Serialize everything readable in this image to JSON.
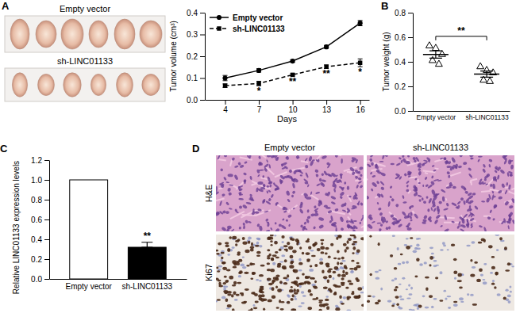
{
  "panel_labels": [
    "A",
    "B",
    "C",
    "D"
  ],
  "photos": {
    "rows": [
      "Empty vector",
      "sh-LINC01133"
    ]
  },
  "histology": {
    "columns": [
      "Empty vector",
      "sh-LINC01133"
    ],
    "rows": [
      "H&E",
      "Ki67"
    ]
  },
  "chart_data": [
    {
      "type": "line",
      "x": [
        4,
        7,
        10,
        13,
        16
      ],
      "x_label": "Days",
      "y_label": "Tumor volume (cm³)",
      "xlim": [
        2.2,
        16.8
      ],
      "xticks": [
        4,
        7,
        10,
        13,
        16
      ],
      "ylim": [
        0,
        0.4
      ],
      "yticks": [
        {
          "value": 0,
          "label": "0.0"
        },
        0.1,
        0.2,
        0.3,
        0.4
      ],
      "legend": "top-left",
      "series": [
        {
          "name": "Empty vector",
          "color": "#000000",
          "marker": "circle",
          "line_style": "solid",
          "values": [
            0.1,
            0.135,
            0.178,
            0.243,
            0.352
          ],
          "error": [
            0.012,
            0.008,
            0.006,
            0.007,
            0.012
          ]
        },
        {
          "name": "sh-LINC01133",
          "color": "#000000",
          "marker": "square",
          "line_style": "dashed",
          "values": [
            0.065,
            0.075,
            0.115,
            0.152,
            0.17
          ],
          "error": [
            0.008,
            0.01,
            0.006,
            0.008,
            0.018
          ]
        }
      ],
      "annotations": [
        {
          "x": 7,
          "text": "*"
        },
        {
          "x": 10,
          "text": "**"
        },
        {
          "x": 13,
          "text": "**"
        },
        {
          "x": 16,
          "text": "*"
        }
      ]
    },
    {
      "type": "dot",
      "categories": [
        "Empty vector",
        "sh-LINC01133"
      ],
      "y_label": "Tumor weight (g)",
      "ylim": [
        0,
        0.8
      ],
      "yticks": [
        {
          "value": 0,
          "label": "0.0"
        },
        0.2,
        0.4,
        0.6,
        0.8
      ],
      "marker": "triangle",
      "color": "#000000",
      "values": [
        [
          0.53,
          0.51,
          0.46,
          0.41,
          0.38
        ],
        [
          0.36,
          0.33,
          0.31,
          0.25,
          0.24
        ]
      ],
      "mean": [
        0.46,
        0.3
      ],
      "error": [
        0.03,
        0.025
      ],
      "annotations": [
        {
          "text": "**"
        }
      ]
    },
    {
      "type": "bar",
      "categories": [
        "Empty vector",
        "sh-LINC01133"
      ],
      "y_label": "Relative LINC01133 expression levels",
      "ylim": [
        0,
        1.2
      ],
      "yticks": [
        {
          "value": 0,
          "label": "0.0"
        },
        0.2,
        0.4,
        0.6,
        0.8,
        {
          "value": 1,
          "label": "1.0"
        },
        1.2
      ],
      "values": [
        1,
        0.32
      ],
      "error": [
        null,
        0.05
      ],
      "colors": [
        "#ffffff",
        "#000000"
      ],
      "annotations": [
        {
          "category": "sh-LINC01133",
          "text": "**"
        }
      ]
    }
  ]
}
